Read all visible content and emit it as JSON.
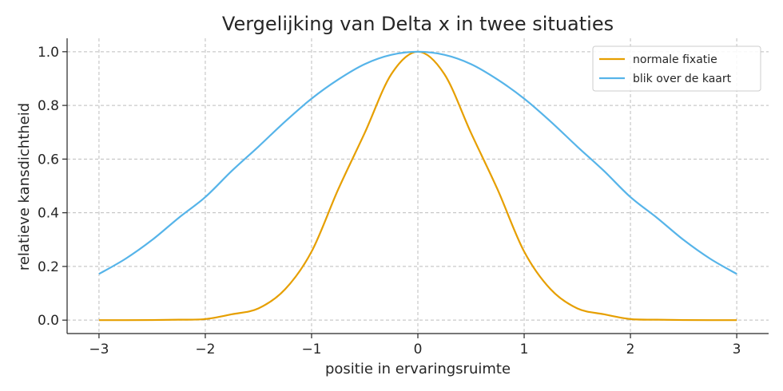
{
  "chart_data": {
    "type": "line",
    "title": "Vergelijking van Delta x in twee situaties",
    "xlabel": "positie in ervaringsruimte",
    "ylabel": "relatieve kansdichtheid",
    "xlim": [
      -3.3,
      3.3
    ],
    "ylim": [
      -0.05,
      1.05
    ],
    "xticks": [
      -3,
      -2,
      -1,
      0,
      1,
      2,
      3
    ],
    "xtick_labels": [
      "−3",
      "−2",
      "−1",
      "0",
      "1",
      "2",
      "3"
    ],
    "yticks": [
      0.0,
      0.2,
      0.4,
      0.6,
      0.8,
      1.0
    ],
    "ytick_labels": [
      "0.0",
      "0.2",
      "0.4",
      "0.6",
      "0.8",
      "1.0"
    ],
    "grid": true,
    "legend_position": "top-right",
    "x": [
      -3.0,
      -2.75,
      -2.5,
      -2.25,
      -2.0,
      -1.75,
      -1.5,
      -1.25,
      -1.0,
      -0.75,
      -0.5,
      -0.25,
      0.0,
      0.25,
      0.5,
      0.75,
      1.0,
      1.25,
      1.5,
      1.75,
      2.0,
      2.25,
      2.5,
      2.75,
      3.0
    ],
    "series": [
      {
        "name": "normale fixatie",
        "color": "#e69f00",
        "values": [
          0.0,
          0.0,
          0.0004,
          0.0016,
          0.0039,
          0.0218,
          0.0438,
          0.1145,
          0.2554,
          0.4867,
          0.6974,
          0.9162,
          1.0,
          0.9162,
          0.6974,
          0.4867,
          0.2554,
          0.1145,
          0.0438,
          0.0218,
          0.0039,
          0.0016,
          0.0004,
          0.0,
          0.0
        ]
      },
      {
        "name": "blik over de kaart",
        "color": "#56b4e9",
        "values": [
          0.172,
          0.2287,
          0.2988,
          0.3812,
          0.4585,
          0.5562,
          0.6464,
          0.7396,
          0.8253,
          0.8964,
          0.9539,
          0.9885,
          1.0,
          0.9885,
          0.9539,
          0.8964,
          0.8253,
          0.7396,
          0.6464,
          0.5562,
          0.4585,
          0.3812,
          0.2988,
          0.2287,
          0.172
        ]
      }
    ]
  }
}
